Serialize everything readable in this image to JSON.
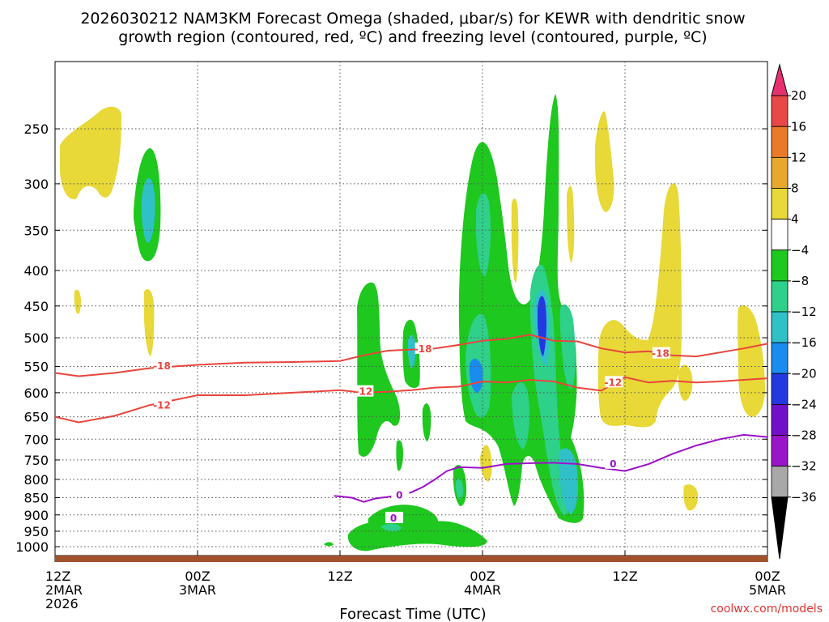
{
  "chart_data": {
    "type": "heatmap",
    "title_lines": [
      "2026030212 NAM3KM Forecast Omega (shaded, μbar/s) for KEWR with dendritic snow",
      "growth region (contoured, red, ºC) and freezing level (contoured, purple, ºC)"
    ],
    "xlabel": "Forecast Time (UTC)",
    "credit": "coolwx.com/models",
    "x_ticks": [
      {
        "hour": 0,
        "lines": [
          "12Z",
          "2MAR",
          "2026"
        ]
      },
      {
        "hour": 12,
        "lines": [
          "00Z",
          "3MAR"
        ]
      },
      {
        "hour": 24,
        "lines": [
          "12Z"
        ]
      },
      {
        "hour": 36,
        "lines": [
          "00Z",
          "4MAR"
        ]
      },
      {
        "hour": 48,
        "lines": [
          "12Z"
        ]
      },
      {
        "hour": 60,
        "lines": [
          "00Z",
          "5MAR"
        ]
      }
    ],
    "xlim": [
      0,
      60
    ],
    "y_ticks": [
      250,
      300,
      350,
      400,
      450,
      500,
      550,
      600,
      650,
      700,
      750,
      800,
      850,
      900,
      950,
      1000
    ],
    "ylim": [
      200,
      1030
    ],
    "y_scale": "log-pressure",
    "grid": true,
    "colorbar": {
      "labels": [
        "20",
        "16",
        "12",
        "8",
        "4",
        "−4",
        "−8",
        "−12",
        "−16",
        "−20",
        "−24",
        "−28",
        "−32",
        "−36"
      ],
      "colors": [
        "#e83070",
        "#e84848",
        "#e87a28",
        "#e8a830",
        "#e8d838",
        "#ffffff",
        "#1ec81e",
        "#2ed08a",
        "#30c0c8",
        "#1a8cf0",
        "#2438e0",
        "#7010c8",
        "#9a14c8",
        "#a8a8a8",
        "#000000"
      ]
    },
    "series": [
      {
        "name": "-18",
        "color": "#e8453c",
        "x": [
          0,
          2,
          5,
          8,
          12,
          16,
          20,
          24,
          26,
          28,
          30,
          32,
          34,
          36,
          38,
          40,
          42,
          44,
          46,
          48,
          50,
          52,
          54,
          56,
          58,
          60
        ],
        "y": [
          562,
          568,
          562,
          553,
          547,
          543,
          542,
          540,
          530,
          522,
          520,
          518,
          512,
          505,
          502,
          495,
          505,
          506,
          518,
          525,
          523,
          530,
          532,
          525,
          518,
          510
        ]
      },
      {
        "name": "-12",
        "color": "#e8453c",
        "x": [
          0,
          2,
          5,
          8,
          12,
          16,
          20,
          24,
          26,
          28,
          30,
          32,
          34,
          36,
          38,
          40,
          42,
          44,
          46,
          48,
          50,
          52,
          54,
          56,
          58,
          60
        ],
        "y": [
          650,
          662,
          648,
          625,
          605,
          605,
          600,
          595,
          600,
          598,
          595,
          590,
          588,
          578,
          580,
          575,
          578,
          590,
          596,
          570,
          580,
          577,
          580,
          578,
          575,
          572
        ]
      },
      {
        "name": "0",
        "color": "#9b10c8",
        "x": [
          23.5,
          25,
          26,
          27,
          28,
          29,
          30,
          31,
          32,
          33,
          34,
          36,
          38,
          40,
          42,
          44,
          46,
          48,
          50,
          52,
          54,
          56,
          58,
          60
        ],
        "y": [
          845,
          850,
          862,
          852,
          848,
          843,
          835,
          820,
          800,
          778,
          768,
          770,
          760,
          758,
          757,
          760,
          770,
          778,
          760,
          735,
          715,
          700,
          690,
          695
        ]
      }
    ]
  }
}
